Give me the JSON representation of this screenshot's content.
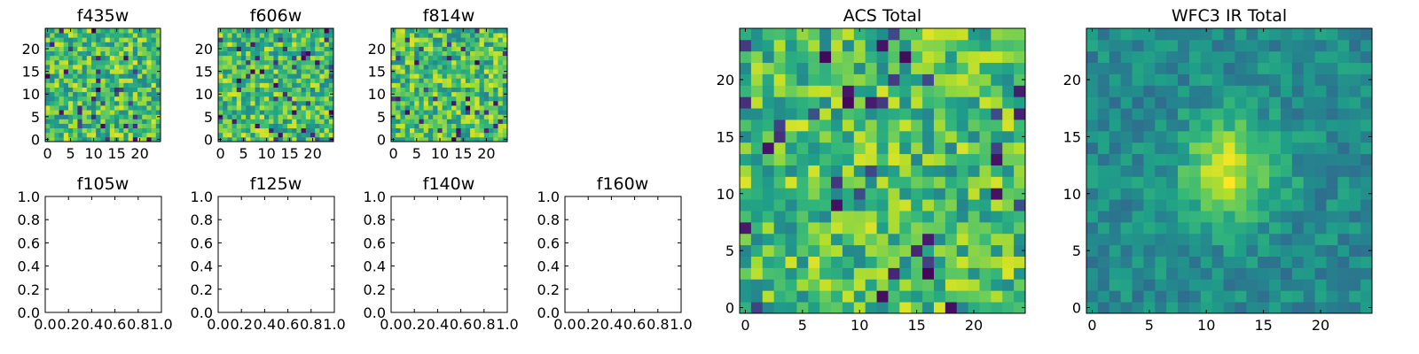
{
  "colors": {
    "background": "#ffffff",
    "frame": "#000000",
    "colormap": "viridis"
  },
  "chart_data": [
    {
      "type": "heatmap",
      "title": "f435w",
      "grid_size": [
        25,
        25
      ],
      "xticks": [
        "0",
        "5",
        "10",
        "15",
        "20"
      ],
      "yticks": [
        "0",
        "5",
        "10",
        "15",
        "20"
      ],
      "xlim": [
        -0.5,
        24.5
      ],
      "ylim": [
        -0.5,
        24.5
      ],
      "seed": 435,
      "smooth": false
    },
    {
      "type": "heatmap",
      "title": "f606w",
      "grid_size": [
        25,
        25
      ],
      "xticks": [
        "0",
        "5",
        "10",
        "15",
        "20"
      ],
      "yticks": [
        "0",
        "5",
        "10",
        "15",
        "20"
      ],
      "xlim": [
        -0.5,
        24.5
      ],
      "ylim": [
        -0.5,
        24.5
      ],
      "seed": 606,
      "smooth": false
    },
    {
      "type": "heatmap",
      "title": "f814w",
      "grid_size": [
        25,
        25
      ],
      "xticks": [
        "0",
        "5",
        "10",
        "15",
        "20"
      ],
      "yticks": [
        "0",
        "5",
        "10",
        "15",
        "20"
      ],
      "xlim": [
        -0.5,
        24.5
      ],
      "ylim": [
        -0.5,
        24.5
      ],
      "seed": 814,
      "smooth": false
    },
    {
      "type": "empty",
      "title": "f105w",
      "xticks": [
        "0.0",
        "0.2",
        "0.4",
        "0.6",
        "0.8",
        "1.0"
      ],
      "yticks": [
        "0.0",
        "0.2",
        "0.4",
        "0.6",
        "0.8",
        "1.0"
      ],
      "xlim": [
        0,
        1
      ],
      "ylim": [
        0,
        1
      ]
    },
    {
      "type": "empty",
      "title": "f125w",
      "xticks": [
        "0.0",
        "0.2",
        "0.4",
        "0.6",
        "0.8",
        "1.0"
      ],
      "yticks": [
        "0.0",
        "0.2",
        "0.4",
        "0.6",
        "0.8",
        "1.0"
      ],
      "xlim": [
        0,
        1
      ],
      "ylim": [
        0,
        1
      ]
    },
    {
      "type": "empty",
      "title": "f140w",
      "xticks": [
        "0.0",
        "0.2",
        "0.4",
        "0.6",
        "0.8",
        "1.0"
      ],
      "yticks": [
        "0.0",
        "0.2",
        "0.4",
        "0.6",
        "0.8",
        "1.0"
      ],
      "xlim": [
        0,
        1
      ],
      "ylim": [
        0,
        1
      ]
    },
    {
      "type": "empty",
      "title": "f160w",
      "xticks": [
        "0.0",
        "0.2",
        "0.4",
        "0.6",
        "0.8",
        "1.0"
      ],
      "yticks": [
        "0.0",
        "0.2",
        "0.4",
        "0.6",
        "0.8",
        "1.0"
      ],
      "xlim": [
        0,
        1
      ],
      "ylim": [
        0,
        1
      ]
    },
    {
      "type": "heatmap",
      "title": "ACS Total",
      "grid_size": [
        25,
        25
      ],
      "xticks": [
        "0",
        "5",
        "10",
        "15",
        "20"
      ],
      "yticks": [
        "0",
        "5",
        "10",
        "15",
        "20"
      ],
      "xlim": [
        -0.5,
        24.5
      ],
      "ylim": [
        -0.5,
        24.5
      ],
      "seed": 1001,
      "smooth": false
    },
    {
      "type": "heatmap",
      "title": "WFC3 IR Total",
      "grid_size": [
        25,
        25
      ],
      "xticks": [
        "0",
        "5",
        "10",
        "15",
        "20"
      ],
      "yticks": [
        "0",
        "5",
        "10",
        "15",
        "20"
      ],
      "xlim": [
        -0.5,
        24.5
      ],
      "ylim": [
        -0.5,
        24.5
      ],
      "seed": 2002,
      "smooth": true,
      "bright_center": [
        12,
        12
      ]
    }
  ]
}
